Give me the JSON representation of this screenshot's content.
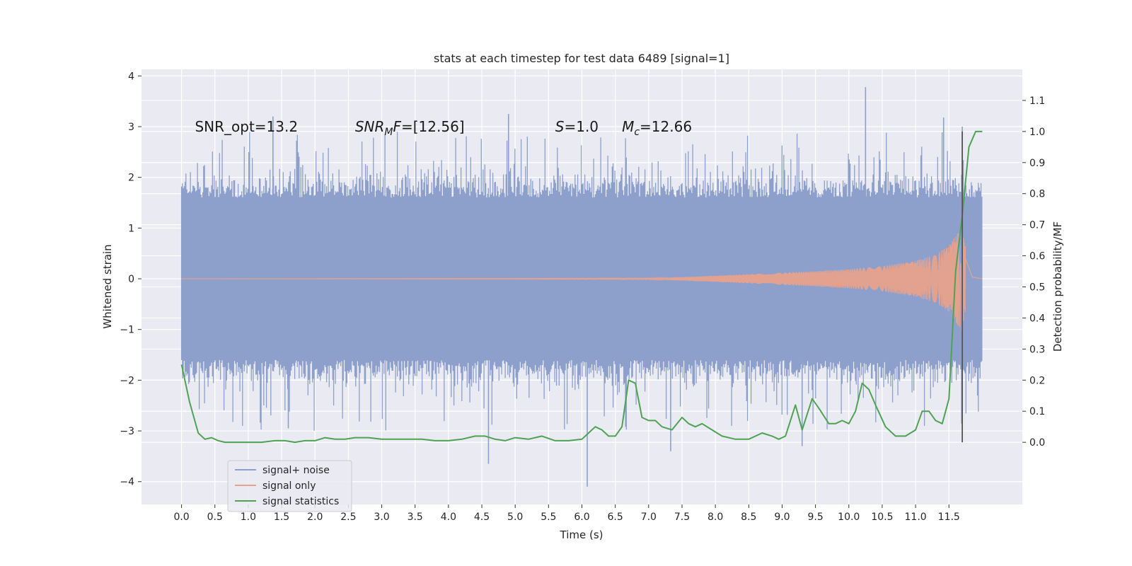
{
  "chart_data": {
    "type": "line",
    "title": "stats at each timestep for test data 6489 [signal=1]",
    "xlabel": "Time (s)",
    "ylabel": "Whitened strain",
    "ylabel_right": "Detection probability/MF",
    "xlim": [
      -0.6,
      12.6
    ],
    "ylim": [
      -4.45,
      4.13
    ],
    "ylim_right": [
      -0.2,
      1.2
    ],
    "x_ticks": [
      0.0,
      0.5,
      1.0,
      1.5,
      2.0,
      2.5,
      3.0,
      3.5,
      4.0,
      4.5,
      5.0,
      5.5,
      6.0,
      6.5,
      7.0,
      7.5,
      8.0,
      8.5,
      9.0,
      9.5,
      10.0,
      10.5,
      11.0,
      11.5
    ],
    "x_tick_labels": [
      "0.0",
      "0.5",
      "1.0",
      "1.5",
      "2.0",
      "2.5",
      "3.0",
      "3.5",
      "4.0",
      "4.5",
      "5.0",
      "5.5",
      "6.0",
      "6.5",
      "7.0",
      "7.5",
      "8.0",
      "8.5",
      "9.0",
      "9.5",
      "10.0",
      "10.5",
      "11.0",
      "11.5"
    ],
    "y_ticks": [
      -4,
      -3,
      -2,
      -1,
      0,
      1,
      2,
      3,
      4
    ],
    "y_tick_labels": [
      "−4",
      "−3",
      "−2",
      "−1",
      "0",
      "1",
      "2",
      "3",
      "4"
    ],
    "y_ticks_right": [
      0.0,
      0.1,
      0.2,
      0.3,
      0.4,
      0.5,
      0.6,
      0.7,
      0.8,
      0.9,
      1.0,
      1.1
    ],
    "y_tick_labels_right": [
      "0.0",
      "0.1",
      "0.2",
      "0.3",
      "0.4",
      "0.5",
      "0.6",
      "0.7",
      "0.8",
      "0.9",
      "1.0",
      "1.1"
    ],
    "grid": true,
    "legend_position": "lower-left",
    "annotations": [
      {
        "text": "SNR_opt=13.2",
        "x": 0.2,
        "y": 3.0
      },
      {
        "text": "SNR_MF=[12.56]",
        "x": 2.6,
        "y": 3.0
      },
      {
        "text": "S=1.0",
        "x": 5.6,
        "y": 3.0
      },
      {
        "text": "M_c=12.66",
        "x": 6.6,
        "y": 3.0
      }
    ],
    "vline": {
      "x": 11.7,
      "y_right_range": [
        0.0,
        1.0
      ],
      "color": "#555555"
    },
    "series": [
      {
        "name": "signal+ noise",
        "axis": "left",
        "color": "#8da0cb",
        "x_range": [
          0.0,
          12.0
        ],
        "typical_amplitude": 1.6,
        "max": 3.78,
        "min": -4.1
      },
      {
        "name": "signal only",
        "axis": "left",
        "color": "#e8a28c",
        "x_range": [
          0.0,
          12.0
        ],
        "envelope": {
          "x": [
            0.0,
            7.0,
            7.5,
            8.0,
            8.5,
            9.0,
            9.5,
            10.0,
            10.5,
            11.0,
            11.3,
            11.5,
            11.6,
            11.7,
            11.75,
            11.85,
            12.0
          ],
          "amplitude": [
            0.0,
            0.01,
            0.03,
            0.06,
            0.09,
            0.12,
            0.15,
            0.19,
            0.25,
            0.35,
            0.48,
            0.65,
            0.85,
            1.05,
            0.6,
            0.05,
            0.0
          ]
        }
      },
      {
        "name": "signal statistics",
        "axis": "right",
        "color": "#4ea353",
        "x": [
          0.0,
          0.12,
          0.25,
          0.35,
          0.45,
          0.55,
          0.65,
          0.8,
          1.0,
          1.2,
          1.4,
          1.55,
          1.7,
          1.85,
          2.0,
          2.15,
          2.3,
          2.45,
          2.6,
          2.8,
          3.0,
          3.2,
          3.4,
          3.6,
          3.8,
          4.0,
          4.2,
          4.4,
          4.55,
          4.7,
          4.85,
          5.0,
          5.2,
          5.4,
          5.6,
          5.8,
          6.0,
          6.1,
          6.2,
          6.3,
          6.4,
          6.5,
          6.6,
          6.7,
          6.8,
          6.9,
          7.0,
          7.1,
          7.2,
          7.35,
          7.5,
          7.6,
          7.7,
          7.8,
          7.95,
          8.1,
          8.3,
          8.5,
          8.7,
          8.85,
          8.95,
          9.05,
          9.2,
          9.3,
          9.45,
          9.55,
          9.7,
          9.8,
          9.9,
          10.0,
          10.1,
          10.2,
          10.3,
          10.4,
          10.55,
          10.7,
          10.85,
          11.0,
          11.1,
          11.2,
          11.3,
          11.4,
          11.5,
          11.6,
          11.7,
          11.8,
          11.9,
          12.0
        ],
        "y": [
          0.25,
          0.13,
          0.03,
          0.01,
          0.015,
          0.005,
          0.0,
          0.0,
          0.0,
          0.0,
          0.005,
          0.005,
          0.0,
          0.005,
          0.005,
          0.015,
          0.01,
          0.01,
          0.015,
          0.015,
          0.01,
          0.01,
          0.01,
          0.01,
          0.005,
          0.005,
          0.01,
          0.02,
          0.02,
          0.01,
          0.005,
          0.015,
          0.01,
          0.02,
          0.005,
          0.005,
          0.01,
          0.03,
          0.05,
          0.04,
          0.02,
          0.02,
          0.05,
          0.2,
          0.19,
          0.08,
          0.07,
          0.07,
          0.05,
          0.04,
          0.08,
          0.06,
          0.05,
          0.06,
          0.04,
          0.02,
          0.01,
          0.01,
          0.03,
          0.02,
          0.01,
          0.02,
          0.12,
          0.04,
          0.14,
          0.11,
          0.06,
          0.06,
          0.07,
          0.06,
          0.1,
          0.19,
          0.17,
          0.12,
          0.05,
          0.02,
          0.02,
          0.04,
          0.1,
          0.1,
          0.07,
          0.06,
          0.14,
          0.55,
          0.73,
          0.95,
          1.0,
          1.0
        ]
      }
    ]
  }
}
